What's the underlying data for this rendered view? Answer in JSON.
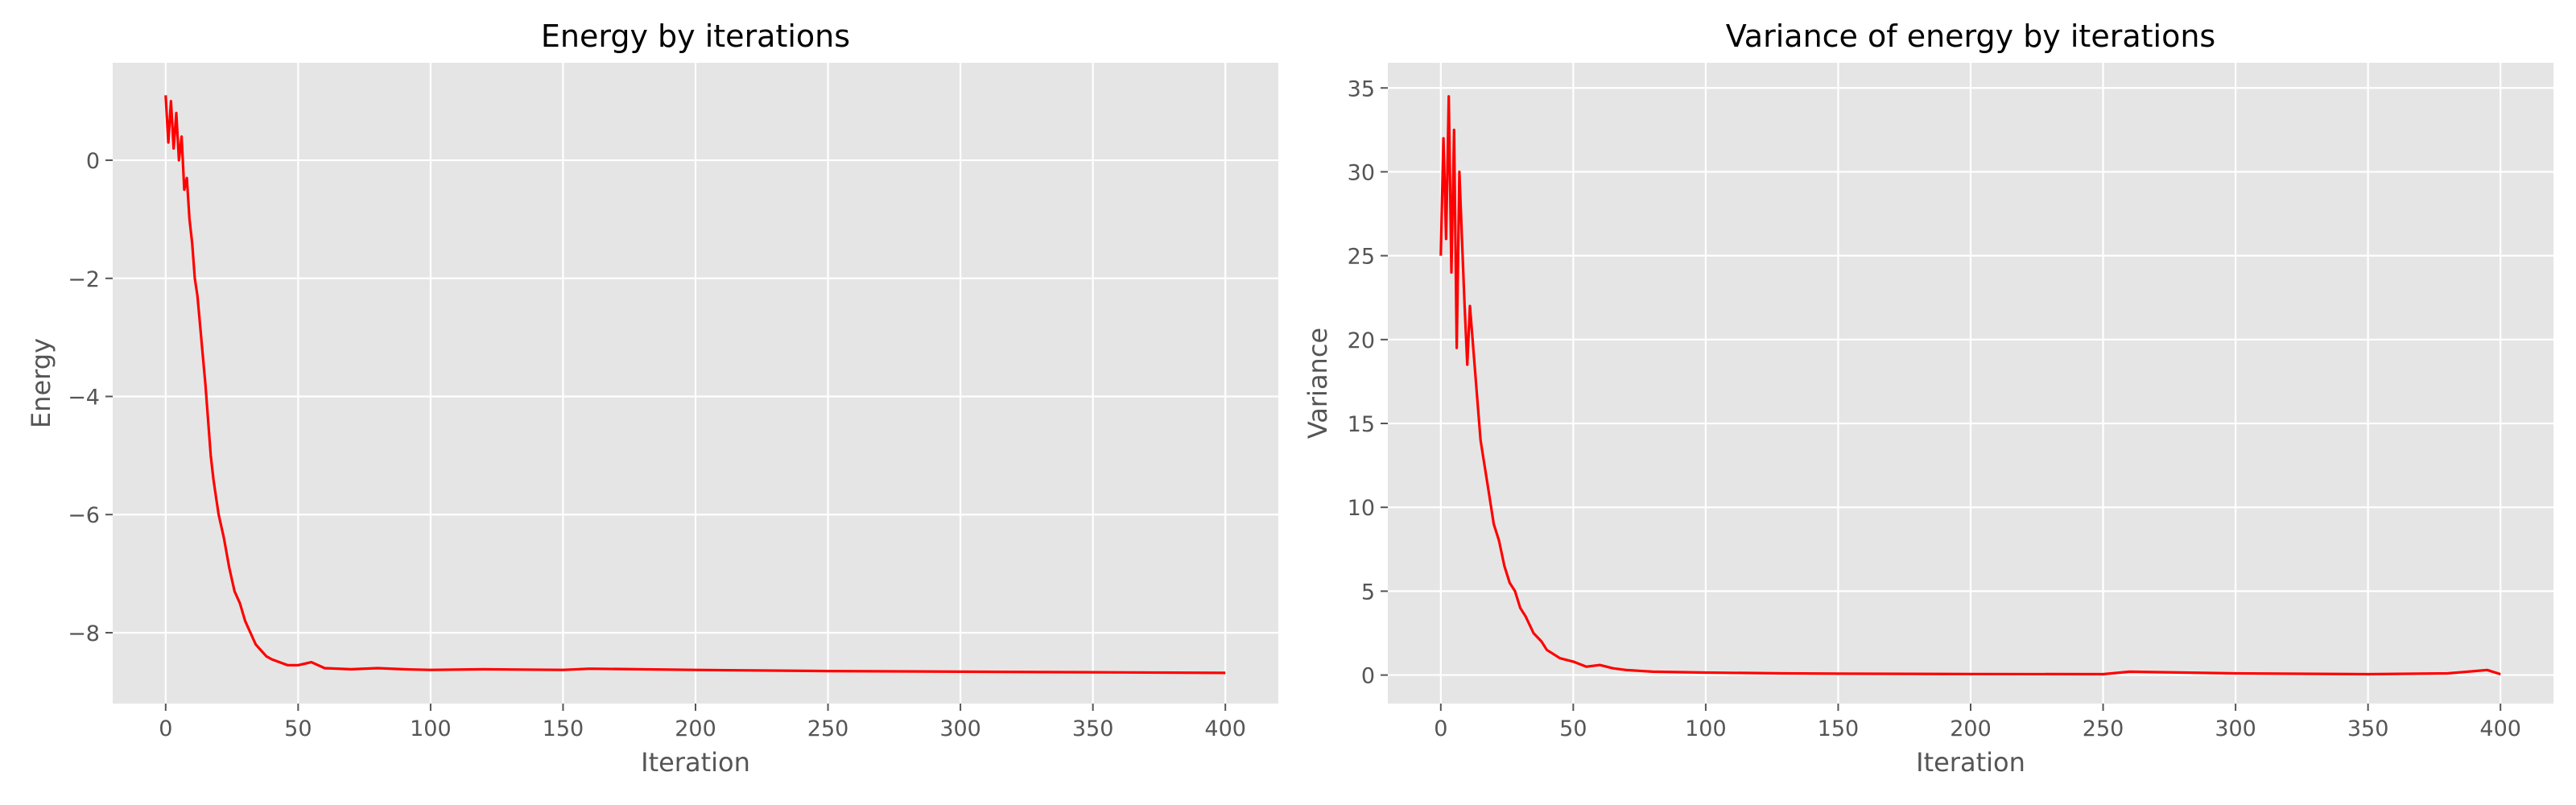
{
  "colors": {
    "series": "#ff0000",
    "plot_background": "#e5e5e5",
    "grid": "#ffffff",
    "text": "#555555",
    "title": "#000000"
  },
  "chart_data": [
    {
      "type": "line",
      "title": "Energy by iterations",
      "xlabel": "Iteration",
      "ylabel": "Energy",
      "xlim": [
        -20,
        420
      ],
      "ylim": [
        -9.2,
        1.65
      ],
      "xticks": [
        0,
        50,
        100,
        150,
        200,
        250,
        300,
        350,
        400
      ],
      "xtick_labels": [
        "0",
        "50",
        "100",
        "150",
        "200",
        "250",
        "300",
        "350",
        "400"
      ],
      "yticks": [
        0,
        -2,
        -4,
        -6,
        -8
      ],
      "ytick_labels": [
        "0",
        "−2",
        "−4",
        "−6",
        "−8"
      ],
      "grid": true,
      "series": [
        {
          "color": "#ff0000",
          "x": [
            0,
            1,
            2,
            3,
            4,
            5,
            6,
            7,
            8,
            9,
            10,
            11,
            12,
            13,
            14,
            15,
            16,
            17,
            18,
            19,
            20,
            22,
            24,
            26,
            28,
            30,
            32,
            34,
            36,
            38,
            40,
            43,
            46,
            50,
            55,
            60,
            70,
            80,
            90,
            100,
            120,
            150,
            160,
            200,
            250,
            300,
            350,
            400
          ],
          "y": [
            1.1,
            0.3,
            1.0,
            0.2,
            0.8,
            0.0,
            0.4,
            -0.5,
            -0.3,
            -1.0,
            -1.4,
            -2.0,
            -2.3,
            -2.8,
            -3.3,
            -3.8,
            -4.4,
            -5.0,
            -5.4,
            -5.7,
            -6.0,
            -6.4,
            -6.9,
            -7.3,
            -7.5,
            -7.8,
            -8.0,
            -8.2,
            -8.3,
            -8.4,
            -8.45,
            -8.5,
            -8.55,
            -8.55,
            -8.5,
            -8.6,
            -8.62,
            -8.6,
            -8.62,
            -8.63,
            -8.62,
            -8.63,
            -8.61,
            -8.63,
            -8.65,
            -8.66,
            -8.67,
            -8.68
          ]
        }
      ]
    },
    {
      "type": "line",
      "title": "Variance of energy by iterations",
      "xlabel": "Iteration",
      "ylabel": "Variance",
      "xlim": [
        -20,
        420
      ],
      "ylim": [
        -1.7,
        36.5
      ],
      "xticks": [
        0,
        50,
        100,
        150,
        200,
        250,
        300,
        350,
        400
      ],
      "xtick_labels": [
        "0",
        "50",
        "100",
        "150",
        "200",
        "250",
        "300",
        "350",
        "400"
      ],
      "yticks": [
        0,
        5,
        10,
        15,
        20,
        25,
        30,
        35
      ],
      "ytick_labels": [
        "0",
        "5",
        "10",
        "15",
        "20",
        "25",
        "30",
        "35"
      ],
      "grid": true,
      "series": [
        {
          "color": "#ff0000",
          "x": [
            0,
            1,
            2,
            3,
            4,
            5,
            6,
            7,
            8,
            9,
            10,
            11,
            12,
            13,
            14,
            15,
            16,
            17,
            18,
            20,
            22,
            24,
            26,
            28,
            30,
            32,
            35,
            38,
            40,
            45,
            50,
            55,
            60,
            65,
            70,
            80,
            100,
            130,
            150,
            200,
            250,
            260,
            300,
            350,
            380,
            395,
            400
          ],
          "y": [
            25,
            32,
            26,
            34.5,
            24,
            32.5,
            19.5,
            30,
            26,
            22,
            18.5,
            22,
            20,
            18,
            16,
            14,
            13,
            12,
            11,
            9,
            8,
            6.5,
            5.5,
            5,
            4,
            3.5,
            2.5,
            2,
            1.5,
            1,
            0.8,
            0.5,
            0.6,
            0.4,
            0.3,
            0.2,
            0.15,
            0.1,
            0.08,
            0.06,
            0.05,
            0.2,
            0.1,
            0.05,
            0.1,
            0.3,
            0.05
          ]
        }
      ]
    }
  ]
}
